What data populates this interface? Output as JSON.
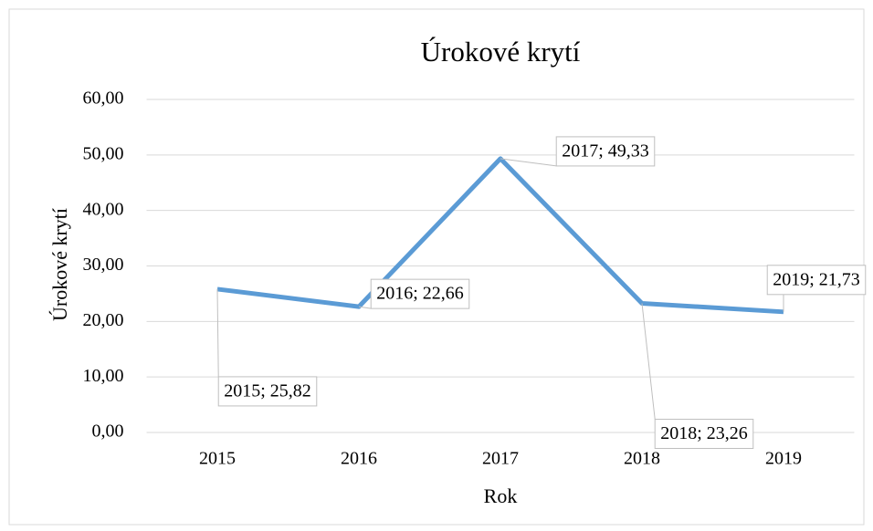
{
  "chart_data": {
    "type": "line",
    "title": "Úrokové krytí",
    "x_label": "Rok",
    "y_label": "Úrokové krytí",
    "categories": [
      "2015",
      "2016",
      "2017",
      "2018",
      "2019"
    ],
    "series": [
      {
        "name": "Úrokové krytí",
        "color": "#5b9bd5",
        "values": [
          25.82,
          22.66,
          49.33,
          23.26,
          21.73
        ],
        "value_labels": [
          "2015; 25,82",
          "2016; 22,66",
          "2017; 49,33",
          "2018; 23,26",
          "2019; 21,73"
        ]
      }
    ],
    "ylim": [
      0,
      60
    ],
    "yticks": [
      {
        "value": 0,
        "label": "0,00"
      },
      {
        "value": 10,
        "label": "10,00"
      },
      {
        "value": 20,
        "label": "20,00"
      },
      {
        "value": 30,
        "label": "30,00"
      },
      {
        "value": 40,
        "label": "40,00"
      },
      {
        "value": 50,
        "label": "50,00"
      },
      {
        "value": 60,
        "label": "60,00"
      }
    ],
    "grid": true
  }
}
